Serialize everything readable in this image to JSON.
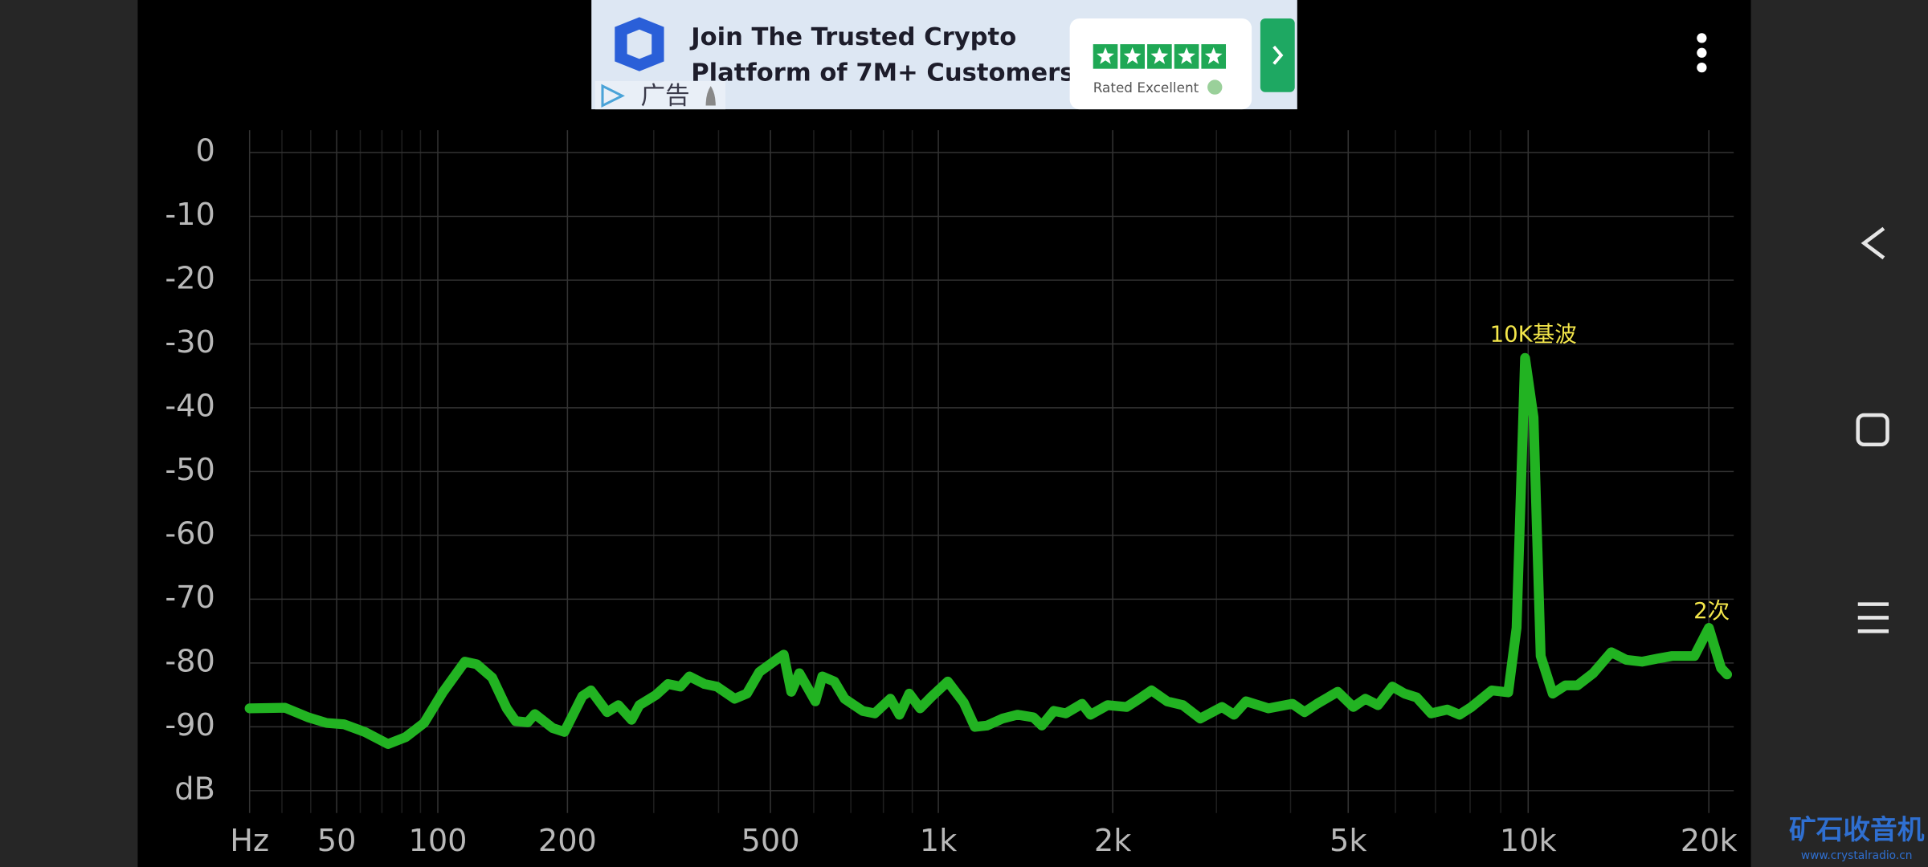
{
  "ad": {
    "headline_1": "Join The Trusted Crypto",
    "headline_2": "Platform of 7M+ Customers",
    "rating": "Rated Excellent",
    "tag": "广告"
  },
  "watermark": {
    "title": "矿石收音机",
    "url": "www.crystalradio.cn"
  },
  "chart_data": {
    "type": "line",
    "color": "#22b322",
    "xscale": "log",
    "grid": true,
    "annotations": [
      "10K基波",
      "2次"
    ],
    "xlim": [
      20,
      22000
    ],
    "ylim": [
      -103.5,
      3.5
    ],
    "xticks": [
      {
        "value": 20,
        "label": "Hz"
      },
      50,
      100,
      200,
      500,
      {
        "value": 1000,
        "label": "1k"
      },
      {
        "value": 2000,
        "label": "2k"
      },
      {
        "value": 5000,
        "label": "5k"
      },
      {
        "value": 10000,
        "label": "10k"
      },
      {
        "value": 20000,
        "label": "20k"
      }
    ],
    "xminorticks": [
      30,
      40,
      60,
      70,
      80,
      90,
      300,
      400,
      600,
      700,
      800,
      900,
      3000,
      4000,
      6000,
      7000,
      8000,
      9000
    ],
    "yticks": [
      0,
      -10,
      -20,
      -30,
      -40,
      -50,
      -60,
      -70,
      -80,
      -90,
      {
        "value": -100,
        "label": "dB"
      }
    ],
    "x": [
      20,
      31,
      39,
      46,
      53,
      62,
      73,
      82,
      92,
      103,
      117,
      125,
      136,
      147,
      154,
      164,
      170,
      186,
      197,
      215,
      224,
      242,
      255,
      271,
      281,
      303,
      320,
      338,
      352,
      376,
      397,
      429,
      452,
      477,
      516,
      529,
      546,
      565,
      604,
      622,
      654,
      682,
      735,
      772,
      823,
      854,
      889,
      929,
      975,
      1039,
      1108,
      1158,
      1216,
      1294,
      1373,
      1462,
      1512,
      1586,
      1663,
      1773,
      1833,
      1960,
      2112,
      2220,
      2329,
      2475,
      2632,
      2816,
      3065,
      3213,
      3366,
      3671,
      4029,
      4222,
      4434,
      4800,
      5099,
      5343,
      5609,
      5931,
      6214,
      6509,
      6884,
      7327,
      7676,
      8039,
      8698,
      9260,
      9565,
      9881,
      10207,
      10494,
      10991,
      11539,
      12084,
      12834,
      13756,
      14575,
      15477,
      16434,
      17373,
      18919,
      20000,
      20955,
      21448
    ],
    "values": [
      -87.1,
      -87,
      -88.5,
      -89.4,
      -89.6,
      -90.8,
      -92.7,
      -91.6,
      -89.4,
      -84.6,
      -79.8,
      -80.2,
      -82.3,
      -87.1,
      -89.1,
      -89.3,
      -88,
      -90.2,
      -90.8,
      -85.2,
      -84.3,
      -87.7,
      -86.6,
      -88.9,
      -86.6,
      -85,
      -83.3,
      -83.7,
      -82.1,
      -83.3,
      -83.7,
      -85.6,
      -84.8,
      -81.4,
      -79.3,
      -78.7,
      -84.5,
      -81.6,
      -86,
      -82.1,
      -82.9,
      -85.6,
      -87.5,
      -87.9,
      -85.6,
      -88.1,
      -84.8,
      -87.1,
      -85.2,
      -82.9,
      -86.2,
      -90,
      -89.8,
      -88.7,
      -88.1,
      -88.5,
      -89.8,
      -87.5,
      -87.9,
      -86.4,
      -88.1,
      -86.6,
      -86.9,
      -85.6,
      -84.3,
      -86,
      -86.6,
      -88.7,
      -86.9,
      -88.1,
      -86,
      -87.1,
      -86.4,
      -87.7,
      -86.4,
      -84.5,
      -86.9,
      -85.6,
      -86.6,
      -83.7,
      -84.8,
      -85.4,
      -87.9,
      -87.3,
      -88.1,
      -86.9,
      -84.3,
      -84.6,
      -74.5,
      -32.2,
      -41.5,
      -78.9,
      -84.8,
      -83.5,
      -83.5,
      -81.6,
      -78.3,
      -79.5,
      -79.8,
      -79.3,
      -78.9,
      -78.9,
      -74.5,
      -80.8,
      -81.8
    ]
  }
}
